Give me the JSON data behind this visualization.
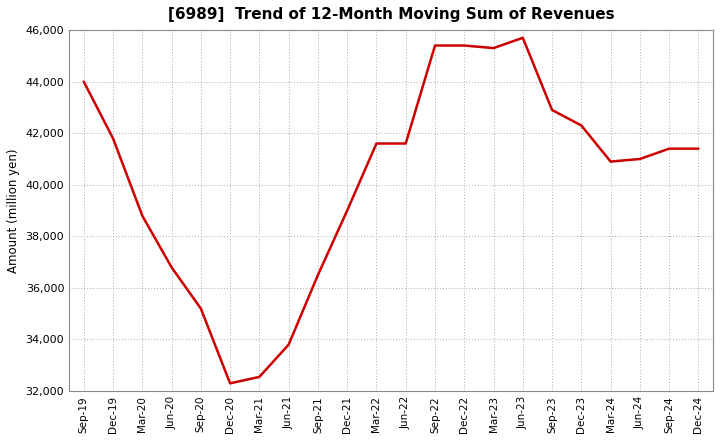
{
  "title": "[6989]  Trend of 12-Month Moving Sum of Revenues",
  "ylabel": "Amount (million yen)",
  "line_color": "#cc0000",
  "background_color": "#ffffff",
  "plot_bg_color": "#ffffff",
  "grid_color": "#aaaaaa",
  "ylim": [
    32000,
    46000
  ],
  "yticks": [
    32000,
    34000,
    36000,
    38000,
    40000,
    42000,
    44000,
    46000
  ],
  "labels": [
    "Sep-19",
    "Dec-19",
    "Mar-20",
    "Jun-20",
    "Sep-20",
    "Dec-20",
    "Mar-21",
    "Jun-21",
    "Sep-21",
    "Dec-21",
    "Mar-22",
    "Jun-22",
    "Sep-22",
    "Dec-22",
    "Mar-23",
    "Jun-23",
    "Sep-23",
    "Dec-23",
    "Mar-24",
    "Jun-24",
    "Sep-24",
    "Dec-24"
  ],
  "values": [
    44000,
    41800,
    38800,
    36800,
    35200,
    32300,
    32550,
    33800,
    36500,
    39000,
    41600,
    41600,
    45400,
    45400,
    45300,
    45700,
    42900,
    42300,
    40900,
    41000,
    41400,
    41400
  ]
}
